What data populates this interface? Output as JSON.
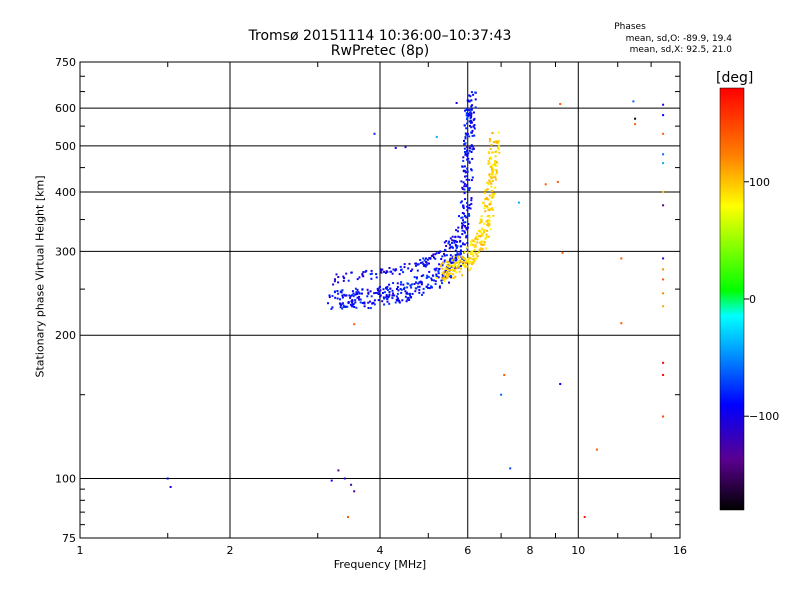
{
  "chart_data": {
    "type": "scatter",
    "title": "Tromsø 20151114 10:36:00–10:37:43",
    "subtitle": "RwPretec (8p)",
    "xlabel": "Frequency [MHz]",
    "ylabel": "Stationary phase Virtual Height [km]",
    "x_scale": "log2",
    "y_scale": "log",
    "xlim": [
      1,
      16
    ],
    "ylim": [
      75,
      750
    ],
    "x_ticks": [
      1,
      2,
      4,
      6,
      8,
      10,
      16
    ],
    "x_tick_labels": [
      "1",
      "2",
      "4",
      "6",
      "8",
      "10",
      "16"
    ],
    "y_ticks": [
      75,
      100,
      200,
      300,
      400,
      500,
      600,
      750
    ],
    "y_tick_labels": [
      "75",
      "100",
      "200",
      "300",
      "400",
      "500",
      "600",
      "750"
    ],
    "grid": true,
    "phases_header": "Phases",
    "phases_line1": "mean, sd,O: -89.9, 19.4",
    "phases_line2": "mean, sd,X:  92.5, 21.0",
    "colorbar": {
      "label": "[deg]",
      "range": [
        -180,
        180
      ],
      "ticks": [
        100,
        0,
        -100
      ],
      "tick_labels": [
        "100",
        "0",
        "−100"
      ]
    },
    "series": [
      {
        "name": "O-mode trace",
        "phase_mean": -89.9,
        "curve": [
          [
            3.2,
            236
          ],
          [
            3.5,
            238
          ],
          [
            3.8,
            240
          ],
          [
            4.2,
            244
          ],
          [
            4.6,
            250
          ],
          [
            5.0,
            258
          ],
          [
            5.4,
            270
          ],
          [
            5.7,
            290
          ],
          [
            5.85,
            320
          ],
          [
            5.95,
            380
          ],
          [
            6.0,
            450
          ],
          [
            6.05,
            550
          ],
          [
            6.1,
            640
          ]
        ]
      },
      {
        "name": "X-mode trace",
        "phase_mean": 92.5,
        "curve": [
          [
            5.3,
            268
          ],
          [
            5.6,
            275
          ],
          [
            5.9,
            285
          ],
          [
            6.2,
            300
          ],
          [
            6.4,
            320
          ],
          [
            6.55,
            350
          ],
          [
            6.65,
            400
          ],
          [
            6.75,
            460
          ],
          [
            6.8,
            520
          ]
        ]
      }
    ],
    "scatter_points": [
      {
        "x": 1.5,
        "y": 100,
        "phase": -90
      },
      {
        "x": 1.52,
        "y": 96,
        "phase": -100
      },
      {
        "x": 3.2,
        "y": 99,
        "phase": -100
      },
      {
        "x": 3.3,
        "y": 104,
        "phase": -140
      },
      {
        "x": 3.4,
        "y": 100,
        "phase": -110
      },
      {
        "x": 3.5,
        "y": 97,
        "phase": -120
      },
      {
        "x": 3.55,
        "y": 94,
        "phase": -130
      },
      {
        "x": 3.45,
        "y": 83,
        "phase": 140
      },
      {
        "x": 3.55,
        "y": 211,
        "phase": 140
      },
      {
        "x": 3.9,
        "y": 530,
        "phase": -80
      },
      {
        "x": 4.3,
        "y": 495,
        "phase": -100
      },
      {
        "x": 4.5,
        "y": 497,
        "phase": -110
      },
      {
        "x": 5.2,
        "y": 522,
        "phase": -40
      },
      {
        "x": 5.7,
        "y": 615,
        "phase": -100
      },
      {
        "x": 7.1,
        "y": 165,
        "phase": 140
      },
      {
        "x": 7.0,
        "y": 150,
        "phase": -60
      },
      {
        "x": 7.3,
        "y": 105,
        "phase": -70
      },
      {
        "x": 7.6,
        "y": 380,
        "phase": -40
      },
      {
        "x": 8.6,
        "y": 415,
        "phase": 140
      },
      {
        "x": 9.1,
        "y": 420,
        "phase": 140
      },
      {
        "x": 9.2,
        "y": 612,
        "phase": 140
      },
      {
        "x": 9.2,
        "y": 158,
        "phase": -90
      },
      {
        "x": 9.3,
        "y": 298,
        "phase": 140
      },
      {
        "x": 10.3,
        "y": 83,
        "phase": 170
      },
      {
        "x": 10.9,
        "y": 115,
        "phase": 140
      },
      {
        "x": 12.2,
        "y": 290,
        "phase": 140
      },
      {
        "x": 12.2,
        "y": 212,
        "phase": 140
      },
      {
        "x": 12.9,
        "y": 620,
        "phase": -60
      },
      {
        "x": 13.0,
        "y": 570,
        "phase": -175
      },
      {
        "x": 13.0,
        "y": 555,
        "phase": 140
      },
      {
        "x": 14.8,
        "y": 610,
        "phase": -100
      },
      {
        "x": 14.8,
        "y": 580,
        "phase": -90
      },
      {
        "x": 14.8,
        "y": 530,
        "phase": 140
      },
      {
        "x": 14.8,
        "y": 480,
        "phase": -60
      },
      {
        "x": 14.8,
        "y": 460,
        "phase": -40
      },
      {
        "x": 14.8,
        "y": 400,
        "phase": 100
      },
      {
        "x": 14.8,
        "y": 375,
        "phase": -140
      },
      {
        "x": 14.8,
        "y": 290,
        "phase": -110
      },
      {
        "x": 14.8,
        "y": 275,
        "phase": 120
      },
      {
        "x": 14.8,
        "y": 262,
        "phase": 140
      },
      {
        "x": 14.8,
        "y": 245,
        "phase": 120
      },
      {
        "x": 14.8,
        "y": 230,
        "phase": 110
      },
      {
        "x": 14.8,
        "y": 175,
        "phase": 180
      },
      {
        "x": 14.8,
        "y": 165,
        "phase": 175
      },
      {
        "x": 14.8,
        "y": 135,
        "phase": 150
      }
    ]
  }
}
